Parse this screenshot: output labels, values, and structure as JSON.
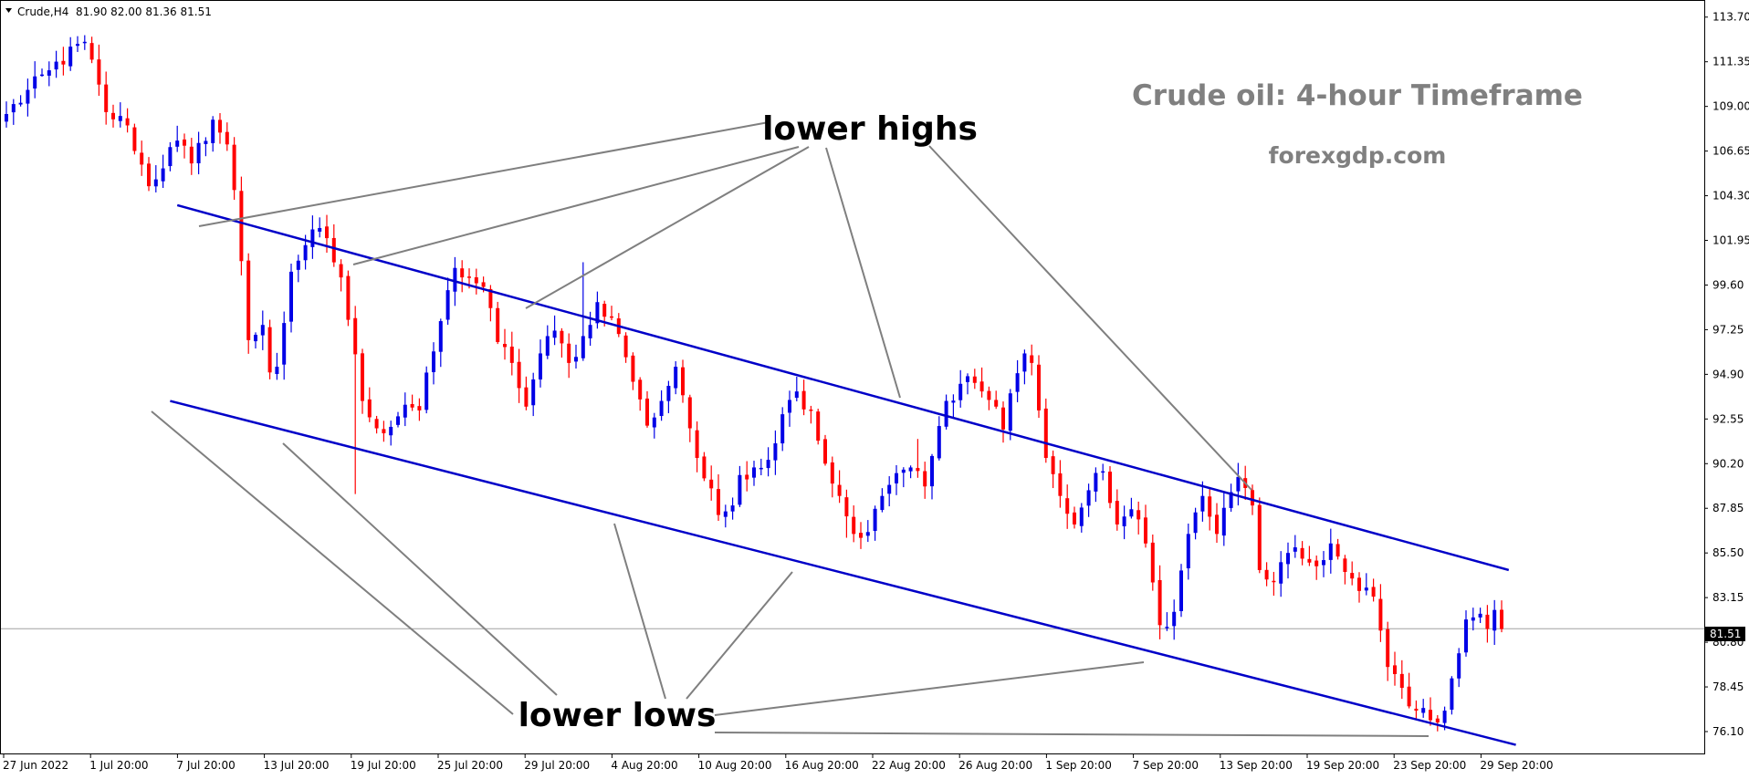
{
  "header": {
    "symbol": "Crude,H4",
    "ohlc": "81.90 82.00 81.36 81.51"
  },
  "watermark": {
    "title": "Crude oil: 4-hour Timeframe",
    "site": "forexgdp.com"
  },
  "annotations": {
    "lower_highs": "lower highs",
    "lower_lows": "lower lows"
  },
  "colors": {
    "bull": "#0000e6",
    "bear": "#ff0000",
    "channel": "#0000c8",
    "annotation_line": "#7f7f7f",
    "price_tag": "#000000"
  },
  "chart_data": {
    "type": "candlestick",
    "symbol": "Crude",
    "timeframe": "H4",
    "current_price": "81.51",
    "ylim": [
      74.9,
      114.6
    ],
    "y_ticks": [
      "113.70",
      "111.35",
      "109.00",
      "106.65",
      "104.30",
      "101.95",
      "99.60",
      "97.25",
      "94.90",
      "92.55",
      "90.20",
      "87.85",
      "85.50",
      "83.15",
      "80.80",
      "78.45",
      "76.10"
    ],
    "x_ticks": [
      "27 Jun 2022",
      "1 Jul 20:00",
      "7 Jul 20:00",
      "13 Jul 20:00",
      "19 Jul 20:00",
      "25 Jul 20:00",
      "29 Jul 20:00",
      "4 Aug 20:00",
      "10 Aug 20:00",
      "16 Aug 20:00",
      "22 Aug 20:00",
      "26 Aug 20:00",
      "1 Sep 20:00",
      "7 Sep 20:00",
      "13 Sep 20:00",
      "19 Sep 20:00",
      "23 Sep 20:00",
      "29 Sep 20:00"
    ],
    "price_path": [
      [
        0,
        108.6
      ],
      [
        6,
        110.9
      ],
      [
        11,
        112.4
      ],
      [
        14,
        108.7
      ],
      [
        17,
        108.0
      ],
      [
        20,
        104.8
      ],
      [
        24,
        107.2
      ],
      [
        26,
        106.0
      ],
      [
        29,
        108.3
      ],
      [
        31,
        107.0
      ],
      [
        32,
        104.6
      ],
      [
        34,
        96.7
      ],
      [
        36,
        97.5
      ],
      [
        37,
        95.0
      ],
      [
        38,
        95.3
      ],
      [
        40,
        100.3
      ],
      [
        42,
        101.7
      ],
      [
        44,
        102.6
      ],
      [
        47,
        100.0
      ],
      [
        50,
        93.5
      ],
      [
        53,
        91.8
      ],
      [
        56,
        93.3
      ],
      [
        58,
        93.0
      ],
      [
        61,
        97.7
      ],
      [
        63,
        100.5
      ],
      [
        65,
        100.0
      ],
      [
        67,
        99.5
      ],
      [
        69,
        96.6
      ],
      [
        71,
        95.5
      ],
      [
        73,
        93.2
      ],
      [
        75,
        96.0
      ],
      [
        77,
        97.2
      ],
      [
        79,
        95.5
      ],
      [
        82,
        97.5
      ],
      [
        83,
        98.7
      ],
      [
        85,
        97.9
      ],
      [
        87,
        95.8
      ],
      [
        90,
        92.2
      ],
      [
        92,
        93.5
      ],
      [
        94,
        95.3
      ],
      [
        95,
        93.8
      ],
      [
        97,
        90.5
      ],
      [
        100,
        87.5
      ],
      [
        102,
        88.0
      ],
      [
        103,
        89.6
      ],
      [
        105,
        90.0
      ],
      [
        107,
        90.4
      ],
      [
        109,
        92.8
      ],
      [
        111,
        94.0
      ],
      [
        113,
        93.0
      ],
      [
        115,
        90.2
      ],
      [
        117,
        88.5
      ],
      [
        119,
        86.5
      ],
      [
        121,
        86.6
      ],
      [
        123,
        88.5
      ],
      [
        125,
        89.7
      ],
      [
        127,
        90.0
      ],
      [
        129,
        89.0
      ],
      [
        132,
        93.5
      ],
      [
        134,
        94.4
      ],
      [
        135,
        94.8
      ],
      [
        137,
        94.0
      ],
      [
        139,
        93.2
      ],
      [
        140,
        92.0
      ],
      [
        141,
        93.9
      ],
      [
        143,
        96.0
      ],
      [
        144,
        95.5
      ],
      [
        145,
        93.0
      ],
      [
        146,
        90.5
      ],
      [
        148,
        88.5
      ],
      [
        150,
        87.0
      ],
      [
        152,
        88.8
      ],
      [
        154,
        89.8
      ],
      [
        156,
        87.0
      ],
      [
        158,
        87.8
      ],
      [
        160,
        86.0
      ],
      [
        162,
        81.7
      ],
      [
        164,
        82.4
      ],
      [
        166,
        86.5
      ],
      [
        168,
        88.5
      ],
      [
        170,
        86.5
      ],
      [
        172,
        88.7
      ],
      [
        173,
        89.5
      ],
      [
        175,
        88.0
      ],
      [
        176,
        84.6
      ],
      [
        178,
        84.0
      ],
      [
        180,
        85.5
      ],
      [
        182,
        85.2
      ],
      [
        184,
        84.8
      ],
      [
        186,
        86.0
      ],
      [
        188,
        84.5
      ],
      [
        190,
        83.5
      ],
      [
        192,
        83.2
      ],
      [
        194,
        79.5
      ],
      [
        196,
        78.4
      ],
      [
        198,
        77.2
      ],
      [
        200,
        76.7
      ],
      [
        202,
        77.2
      ],
      [
        203,
        78.9
      ],
      [
        205,
        82.0
      ],
      [
        207,
        82.3
      ],
      [
        208,
        81.5
      ],
      [
        209,
        82.5
      ],
      [
        210,
        81.5
      ]
    ],
    "highlight_wicks": [
      {
        "index": 81,
        "high": 100.8
      },
      {
        "index": 49,
        "low": 88.6
      },
      {
        "index": 118,
        "low": 86.3
      },
      {
        "index": 128,
        "high": 91.5
      }
    ],
    "channel_upper": [
      [
        24,
        103.8
      ],
      [
        211,
        84.6
      ]
    ],
    "channel_lower": [
      [
        23,
        93.5
      ],
      [
        212,
        75.4
      ]
    ]
  }
}
